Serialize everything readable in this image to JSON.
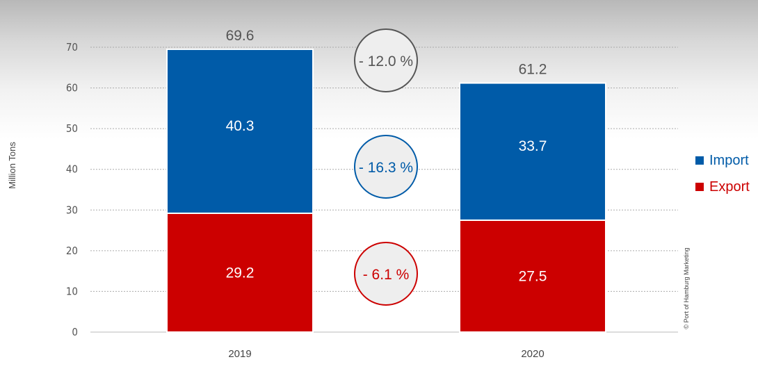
{
  "chart_data": {
    "type": "bar",
    "stacked": true,
    "categories": [
      "2019",
      "2020"
    ],
    "series": [
      {
        "name": "Export",
        "values": [
          29.2,
          27.5
        ],
        "color": "#cc0000"
      },
      {
        "name": "Import",
        "values": [
          40.3,
          33.7
        ],
        "color": "#005ba8"
      }
    ],
    "totals": [
      "69.6",
      "61.2"
    ],
    "segment_labels": {
      "Export": [
        "29.2",
        "27.5"
      ],
      "Import": [
        "40.3",
        "33.7"
      ]
    },
    "changes": [
      {
        "label": "- 12.0 %",
        "target": "total",
        "color": "#555555"
      },
      {
        "label": "- 16.3 %",
        "target": "Import",
        "color": "#005ba8"
      },
      {
        "label": "- 6.1 %",
        "target": "Export",
        "color": "#cc0000"
      }
    ],
    "ylabel": "Million Tons",
    "ylim": [
      0,
      70
    ],
    "yticks": [
      0,
      10,
      20,
      30,
      40,
      50,
      60,
      70
    ],
    "grid": true,
    "legend": {
      "placement": "right",
      "items": [
        "Import",
        "Export"
      ]
    },
    "copyright": "© Port of Hamburg Marketing"
  }
}
